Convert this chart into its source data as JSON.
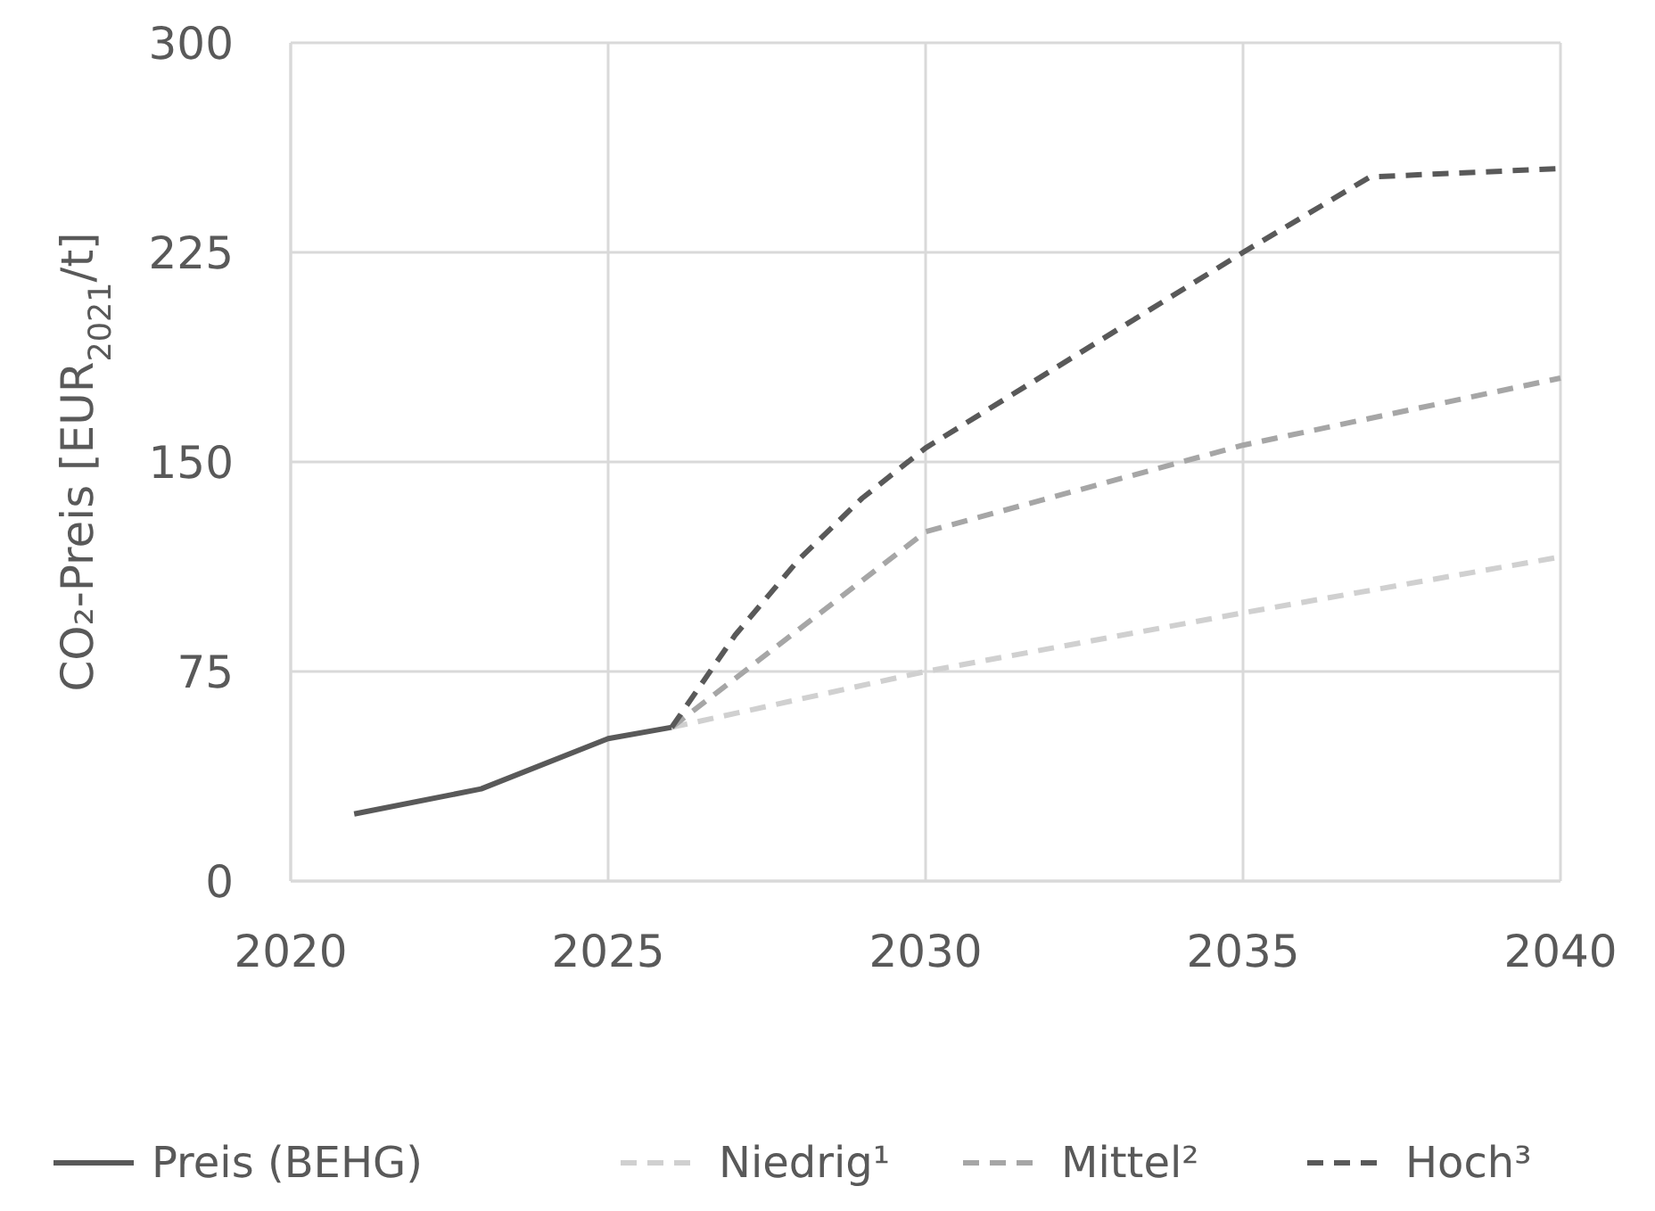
{
  "chart_data": {
    "type": "line",
    "ylabel": "CO₂-Preis [EUR$_{2021}$/t]",
    "xlim": [
      2020,
      2040
    ],
    "xticks": [
      2020,
      2025,
      2030,
      2035,
      2040
    ],
    "ylim": [
      0,
      300
    ],
    "yticks": [
      0,
      75,
      150,
      225,
      300
    ],
    "grid": true,
    "legend": "bottom",
    "series": [
      {
        "name": "Preis (BEHG)",
        "color": "#595959",
        "line_style": "solid",
        "x": [
          2021,
          2023,
          2025,
          2026
        ],
        "values": [
          24,
          33,
          51,
          55
        ]
      },
      {
        "name": "Niedrig¹",
        "color": "#d0d0d0",
        "line_style": "dashed",
        "x": [
          2026,
          2030,
          2035,
          2040
        ],
        "values": [
          55,
          75,
          96,
          116
        ]
      },
      {
        "name": "Mittel²",
        "color": "#a6a6a6",
        "line_style": "dashed",
        "x": [
          2026,
          2030,
          2035,
          2040
        ],
        "values": [
          55,
          125,
          156,
          180
        ]
      },
      {
        "name": "Hoch³",
        "color": "#595959",
        "line_style": "dashed",
        "x": [
          2026,
          2027,
          2028,
          2029,
          2030,
          2035,
          2037,
          2040
        ],
        "values": [
          55,
          88,
          115,
          137,
          155,
          225,
          252,
          255
        ]
      }
    ]
  }
}
